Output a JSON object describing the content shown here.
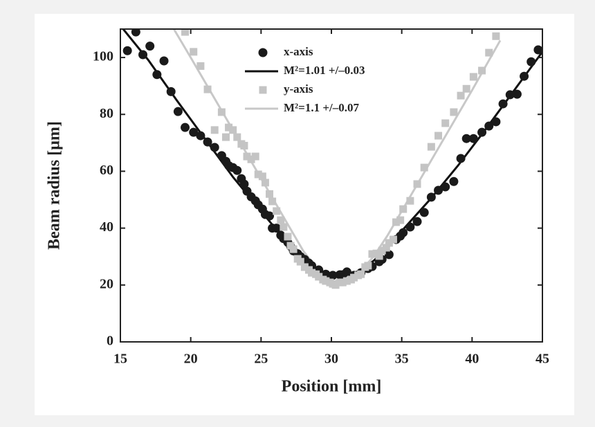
{
  "chart_data": {
    "type": "scatter",
    "x_label": "Position [mm]",
    "y_label": "Beam radius [µm]",
    "xlim": [
      15,
      45
    ],
    "ylim": [
      0,
      110
    ],
    "xticks": [
      15,
      20,
      25,
      30,
      35,
      40,
      45
    ],
    "yticks": [
      0,
      20,
      40,
      60,
      80,
      100
    ],
    "series": [
      {
        "name": "x-axis",
        "kind": "points",
        "marker": "circle",
        "color": "#1a1a1a",
        "x": [
          15.5,
          16.1,
          16.6,
          17.1,
          17.6,
          18.1,
          18.6,
          19.1,
          19.6,
          20.2,
          20.7,
          21.2,
          21.7,
          22.2,
          22.5,
          22.7,
          23.0,
          23.3,
          23.6,
          23.8,
          24.0,
          24.3,
          24.6,
          24.8,
          25.1,
          25.3,
          25.6,
          25.8,
          26.1,
          26.4,
          26.6,
          26.9,
          27.1,
          27.3,
          27.6,
          27.8,
          28.1,
          28.4,
          28.6,
          29.1,
          29.6,
          30.1,
          30.6,
          30.8,
          31.1,
          31.6,
          32.1,
          32.6,
          32.9,
          33.4,
          33.6,
          34.1,
          34.6,
          34.9,
          35.1,
          35.6,
          36.1,
          36.6,
          37.1,
          37.6,
          38.1,
          38.7,
          39.2,
          39.6,
          40.1,
          40.7,
          41.2,
          41.7,
          42.2,
          42.7,
          43.2,
          43.7,
          44.2,
          44.7
        ],
        "values": [
          102.4,
          109,
          101,
          104,
          94,
          98.8,
          88,
          81,
          75.4,
          73.7,
          72.5,
          70.3,
          68.4,
          65.5,
          63.5,
          62,
          61.3,
          60.3,
          57.4,
          55.5,
          53,
          51,
          49.6,
          48.2,
          46.7,
          44.8,
          44.3,
          40,
          40,
          37.5,
          36.3,
          35,
          33.6,
          32,
          31,
          30,
          29,
          27.7,
          26.8,
          25.3,
          23.8,
          23.4,
          23.6,
          23.6,
          24.6,
          23.4,
          24.3,
          25.8,
          26.5,
          28.2,
          29,
          30.7,
          36,
          37.2,
          38.4,
          40.4,
          42.3,
          45.5,
          50.9,
          53.3,
          54.5,
          56.4,
          64.5,
          71.5,
          71.5,
          73.7,
          75.9,
          77.4,
          83.7,
          86.9,
          87.1,
          93.4,
          98.5,
          102.7
        ]
      },
      {
        "name": "M²=1.01 +/–0.03",
        "kind": "line",
        "color": "#111111",
        "x": [
          15.2,
          17,
          19,
          21,
          23,
          25,
          27,
          28,
          29,
          30,
          30.5,
          31,
          32,
          33,
          34,
          35,
          37,
          39,
          41,
          43,
          45
        ],
        "values": [
          110,
          99,
          85,
          71.5,
          58,
          46,
          34,
          29,
          25.5,
          23.2,
          23,
          23.2,
          25,
          28.5,
          33,
          39,
          50,
          62,
          75,
          88.5,
          102
        ]
      },
      {
        "name": "y-axis",
        "kind": "points",
        "marker": "square",
        "color": "#c4c4c4",
        "x": [
          19.6,
          20.2,
          20.7,
          21.2,
          21.7,
          22.2,
          22.5,
          22.7,
          23.0,
          23.3,
          23.6,
          23.8,
          24.0,
          24.3,
          24.6,
          24.8,
          25.1,
          25.3,
          25.6,
          25.8,
          26.1,
          26.4,
          26.6,
          26.9,
          27.1,
          27.3,
          27.6,
          27.8,
          28.1,
          28.4,
          28.6,
          28.9,
          29.1,
          29.4,
          29.6,
          29.9,
          30.1,
          30.3,
          30.6,
          30.8,
          31.1,
          31.4,
          31.6,
          31.9,
          32.1,
          32.4,
          32.6,
          32.9,
          33.2,
          33.4,
          33.6,
          33.9,
          34.1,
          34.4,
          34.6,
          34.9,
          35.1,
          35.6,
          36.1,
          36.6,
          37.1,
          37.6,
          38.1,
          38.7,
          39.2,
          39.6,
          40.1,
          40.7,
          41.2,
          41.7
        ],
        "values": [
          109,
          102,
          97,
          88.8,
          74.5,
          80.8,
          72,
          75.4,
          74.5,
          72,
          69.6,
          69,
          65.2,
          64.2,
          65.2,
          58.9,
          58.2,
          56,
          52,
          49.4,
          46,
          42.8,
          40.4,
          37,
          33.8,
          32.6,
          29.2,
          28.2,
          26.3,
          25.3,
          24.3,
          23.8,
          22.9,
          21.9,
          21.4,
          20.9,
          20.4,
          20,
          20.9,
          20.9,
          21.4,
          21.9,
          22.6,
          23.4,
          23.8,
          26.3,
          26.8,
          30.9,
          31.1,
          30.2,
          32.1,
          33.1,
          34.8,
          36,
          42.1,
          42.8,
          46.7,
          49.6,
          55.5,
          61.3,
          68.6,
          72.5,
          76.9,
          80.8,
          86.6,
          89,
          93.2,
          95.4,
          101.7,
          107.5
        ]
      },
      {
        "name": "M²=1.1 +/–0.07",
        "kind": "line",
        "color": "#c8c8c8",
        "x": [
          18.8,
          20,
          22,
          24,
          26,
          27,
          28,
          29,
          30,
          30.6,
          31,
          32,
          33,
          34,
          35,
          36,
          38,
          40,
          42
        ],
        "values": [
          110,
          100,
          83,
          66,
          49,
          40.5,
          32,
          25.5,
          21.5,
          20.6,
          21,
          24.5,
          30,
          37.5,
          46,
          54.5,
          71.5,
          88.5,
          106
        ]
      }
    ]
  }
}
